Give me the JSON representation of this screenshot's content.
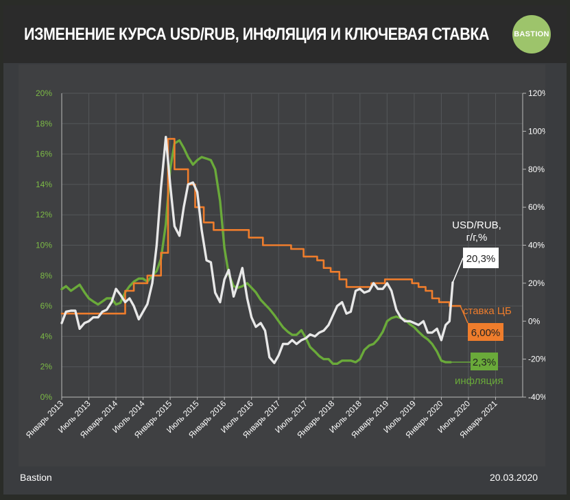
{
  "header": {
    "title": "ИЗМЕНЕНИЕ КУРСА USD/RUB, ИНФЛЯЦИЯ И КЛЮЧЕВАЯ СТАВКА",
    "logo_text": "BASTION"
  },
  "footer": {
    "source": "Bastion",
    "date": "20.03.2020"
  },
  "colors": {
    "inflation": "#6aaa3a",
    "key_rate": "#ef7d2c",
    "usdrub": "#e8e8e8",
    "left_ticks": "#7dbb46",
    "right_ticks": "#ffffff",
    "grid": "#55575a"
  },
  "chart_data": {
    "type": "line",
    "title": "ИЗМЕНЕНИЕ КУРСА USD/RUB, ИНФЛЯЦИЯ И КЛЮЧЕВАЯ СТАВКА",
    "x_axis": {
      "start": 2013.0,
      "end": 2021.5,
      "tick_labels": [
        "Январь 2013",
        "Июль 2013",
        "Январь 2014",
        "Июль 2014",
        "Январь 2015",
        "Июль 2015",
        "Январь 2016",
        "Июль 2016",
        "Январь 2017",
        "Июль 2017",
        "Январь 2018",
        "Июль 2018",
        "Январь 2019",
        "Июль 2019",
        "Январь 2020",
        "Июль 2020",
        "Январь 2021"
      ]
    },
    "y_left": {
      "min": 0,
      "max": 20,
      "step": 2,
      "tick_labels": [
        "0%",
        "2%",
        "4%",
        "6%",
        "8%",
        "10%",
        "12%",
        "14%",
        "16%",
        "18%",
        "20%"
      ]
    },
    "y_right": {
      "min": -40,
      "max": 120,
      "step": 20,
      "tick_labels": [
        "-40%",
        "-20%",
        "0%",
        "20%",
        "40%",
        "60%",
        "80%",
        "100%",
        "120%"
      ]
    },
    "series": [
      {
        "name": "инфляция",
        "axis": "left",
        "color": "#6aaa3a",
        "x": [
          2013.0,
          2013.08,
          2013.17,
          2013.25,
          2013.33,
          2013.42,
          2013.5,
          2013.58,
          2013.67,
          2013.75,
          2013.83,
          2013.92,
          2014.0,
          2014.08,
          2014.17,
          2014.25,
          2014.33,
          2014.42,
          2014.5,
          2014.58,
          2014.67,
          2014.75,
          2014.83,
          2014.92,
          2015.0,
          2015.08,
          2015.17,
          2015.25,
          2015.33,
          2015.42,
          2015.5,
          2015.58,
          2015.67,
          2015.75,
          2015.83,
          2015.92,
          2016.0,
          2016.08,
          2016.17,
          2016.25,
          2016.33,
          2016.42,
          2016.5,
          2016.58,
          2016.67,
          2016.75,
          2016.83,
          2016.92,
          2017.0,
          2017.08,
          2017.17,
          2017.25,
          2017.33,
          2017.42,
          2017.5,
          2017.58,
          2017.67,
          2017.75,
          2017.83,
          2017.92,
          2018.0,
          2018.08,
          2018.17,
          2018.25,
          2018.33,
          2018.42,
          2018.5,
          2018.58,
          2018.67,
          2018.75,
          2018.83,
          2018.92,
          2019.0,
          2019.08,
          2019.17,
          2019.25,
          2019.33,
          2019.42,
          2019.5,
          2019.58,
          2019.67,
          2019.75,
          2019.83,
          2019.92,
          2020.0,
          2020.08,
          2020.17
        ],
        "values": [
          7.1,
          7.3,
          7.0,
          7.2,
          7.4,
          6.9,
          6.5,
          6.3,
          6.1,
          6.3,
          6.5,
          6.5,
          6.1,
          6.2,
          6.9,
          7.3,
          7.6,
          7.8,
          7.8,
          7.6,
          8.0,
          8.3,
          9.1,
          11.4,
          15.0,
          16.7,
          16.9,
          16.4,
          15.8,
          15.3,
          15.6,
          15.8,
          15.7,
          15.6,
          15.0,
          12.9,
          9.8,
          8.1,
          7.3,
          7.2,
          7.3,
          7.5,
          7.2,
          6.9,
          6.4,
          6.1,
          5.8,
          5.4,
          5.0,
          4.6,
          4.3,
          4.1,
          4.1,
          4.4,
          3.9,
          3.3,
          3.0,
          2.7,
          2.5,
          2.5,
          2.2,
          2.2,
          2.4,
          2.4,
          2.4,
          2.3,
          2.5,
          3.1,
          3.4,
          3.5,
          3.8,
          4.3,
          5.0,
          5.2,
          5.3,
          5.2,
          5.1,
          4.8,
          4.6,
          4.3,
          4.0,
          3.8,
          3.5,
          3.0,
          2.4,
          2.3,
          2.3
        ]
      },
      {
        "name": "ставка ЦБ",
        "axis": "left",
        "color": "#ef7d2c",
        "x": [
          2013.0,
          2013.7,
          2013.7,
          2014.17,
          2014.17,
          2014.33,
          2014.33,
          2014.58,
          2014.58,
          2014.83,
          2014.83,
          2014.96,
          2014.96,
          2015.08,
          2015.08,
          2015.33,
          2015.33,
          2015.46,
          2015.46,
          2015.62,
          2015.62,
          2015.8,
          2015.8,
          2016.45,
          2016.45,
          2016.71,
          2016.71,
          2017.23,
          2017.23,
          2017.46,
          2017.46,
          2017.71,
          2017.71,
          2017.83,
          2017.83,
          2017.96,
          2017.96,
          2018.12,
          2018.12,
          2018.25,
          2018.25,
          2018.71,
          2018.71,
          2018.96,
          2018.96,
          2019.46,
          2019.46,
          2019.58,
          2019.58,
          2019.71,
          2019.71,
          2019.83,
          2019.83,
          2019.96,
          2019.96,
          2020.15,
          2020.15,
          2020.35
        ],
        "values": [
          5.5,
          5.5,
          5.5,
          5.5,
          7.0,
          7.0,
          7.5,
          7.5,
          8.0,
          8.0,
          9.5,
          9.5,
          17.0,
          17.0,
          15.0,
          15.0,
          14.0,
          14.0,
          12.5,
          12.5,
          11.5,
          11.5,
          11.0,
          11.0,
          10.5,
          10.5,
          10.0,
          10.0,
          9.75,
          9.75,
          9.25,
          9.25,
          9.0,
          9.0,
          8.5,
          8.5,
          8.25,
          8.25,
          7.75,
          7.75,
          7.25,
          7.25,
          7.5,
          7.5,
          7.75,
          7.75,
          7.5,
          7.5,
          7.25,
          7.25,
          7.0,
          7.0,
          6.5,
          6.5,
          6.25,
          6.25,
          6.0,
          6.0
        ]
      },
      {
        "name": "USD/RUB, г/г,%",
        "axis": "right",
        "color": "#e8e8e8",
        "x": [
          2013.0,
          2013.08,
          2013.17,
          2013.25,
          2013.33,
          2013.42,
          2013.5,
          2013.58,
          2013.67,
          2013.75,
          2013.83,
          2013.92,
          2014.0,
          2014.08,
          2014.17,
          2014.25,
          2014.33,
          2014.42,
          2014.5,
          2014.58,
          2014.67,
          2014.75,
          2014.83,
          2014.92,
          2015.0,
          2015.08,
          2015.17,
          2015.25,
          2015.33,
          2015.42,
          2015.5,
          2015.58,
          2015.67,
          2015.75,
          2015.83,
          2015.92,
          2016.0,
          2016.08,
          2016.17,
          2016.25,
          2016.33,
          2016.42,
          2016.5,
          2016.58,
          2016.67,
          2016.75,
          2016.83,
          2016.92,
          2017.0,
          2017.08,
          2017.17,
          2017.25,
          2017.33,
          2017.42,
          2017.5,
          2017.58,
          2017.67,
          2017.75,
          2017.83,
          2017.92,
          2018.0,
          2018.08,
          2018.17,
          2018.25,
          2018.33,
          2018.42,
          2018.5,
          2018.58,
          2018.67,
          2018.75,
          2018.83,
          2018.92,
          2019.0,
          2019.08,
          2019.17,
          2019.25,
          2019.33,
          2019.42,
          2019.5,
          2019.58,
          2019.67,
          2019.75,
          2019.83,
          2019.92,
          2020.0,
          2020.08,
          2020.15,
          2020.21
        ],
        "values": [
          -1.0,
          5.0,
          5.5,
          5.5,
          -4.0,
          -1.0,
          0.0,
          2.0,
          2.0,
          5.0,
          6.0,
          10.0,
          17.0,
          14.0,
          10.0,
          12.0,
          8.0,
          1.0,
          5.0,
          9.0,
          20.0,
          40.0,
          70.0,
          97.0,
          72.0,
          50.0,
          45.0,
          60.0,
          72.0,
          73.0,
          68.0,
          48.0,
          32.0,
          31.0,
          15.0,
          10.0,
          22.0,
          27.0,
          13.0,
          20.0,
          28.0,
          12.0,
          2.0,
          -3.0,
          -1.0,
          -5.0,
          -19.0,
          -22.0,
          -18.0,
          -12.0,
          -12.0,
          -10.0,
          -12.0,
          -10.0,
          -9.0,
          -7.0,
          -8.0,
          -6.0,
          -5.0,
          -2.0,
          3.0,
          8.0,
          10.0,
          4.0,
          5.0,
          16.0,
          17.0,
          15.0,
          16.0,
          20.0,
          17.0,
          17.0,
          20.0,
          16.0,
          6.0,
          2.0,
          0.0,
          0.0,
          -1.0,
          -2.0,
          0.0,
          -6.0,
          -6.0,
          -4.0,
          -10.0,
          -2.0,
          0.0,
          20.3
        ]
      }
    ],
    "annotations": {
      "usdrub_label": "USD/RUB,\nг/г,%",
      "usdrub_value": "20,3%",
      "rate_label": "ставка ЦБ",
      "rate_value": "6,00%",
      "inflation_label": "инфляция",
      "inflation_value": "2,3%"
    }
  }
}
